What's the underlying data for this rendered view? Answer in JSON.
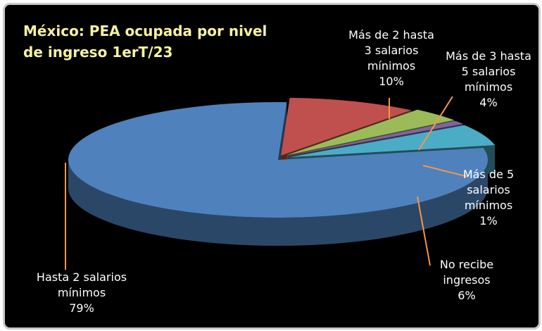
{
  "chart_data": {
    "type": "pie",
    "title": "México: PEA ocupada por nivel de ingreso 1erT/23",
    "slices": [
      {
        "label": "Hasta 2 salarios mínimos",
        "value": 79,
        "value_label": "79%",
        "color": "#4f81bd"
      },
      {
        "label": "Más de 2 hasta 3 salarios mínimos",
        "value": 10,
        "value_label": "10%",
        "color": "#c0504d"
      },
      {
        "label": "Más de 3 hasta 5 salarios mínimos",
        "value": 4,
        "value_label": "4%",
        "color": "#9bbb59"
      },
      {
        "label": "Más de 5 salarios mínimos",
        "value": 1,
        "value_label": "1%",
        "color": "#8064a2"
      },
      {
        "label": "No recibe ingresos",
        "value": 6,
        "value_label": "6%",
        "color": "#4bacc6"
      }
    ],
    "label_lines": {
      "s0": [
        "Hasta 2 salarios",
        "mínimos"
      ],
      "s1": [
        "Más de 2 hasta",
        "3 salarios",
        "mínimos"
      ],
      "s2": [
        "Más de 3 hasta",
        "5 salarios",
        "mínimos"
      ],
      "s3": [
        "Más de 5",
        "salarios",
        "mínimos"
      ],
      "s4": [
        "No recibe",
        "ingresos"
      ]
    },
    "leader_color": "#f79646",
    "style": "3d-exploded"
  }
}
